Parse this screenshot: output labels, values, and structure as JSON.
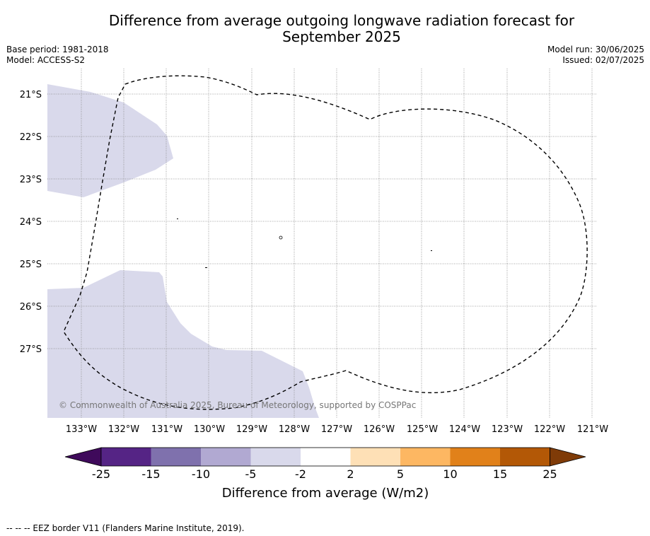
{
  "title_line1": "Difference from average outgoing longwave radiation forecast for",
  "title_line2": "September 2025",
  "meta_left": {
    "base_period": "Base period: 1981-2018",
    "model": "Model: ACCESS-S2"
  },
  "meta_right": {
    "model_run": "Model run: 30/06/2025",
    "issued": "Issued: 02/07/2025"
  },
  "copyright": "© Commonwealth of Australia 2025, Bureau of Meteorology, supported by COSPPac",
  "lat_labels": [
    "21°S",
    "22°S",
    "23°S",
    "24°S",
    "25°S",
    "26°S",
    "27°S"
  ],
  "lon_labels": [
    "133°W",
    "132°W",
    "131°W",
    "130°W",
    "129°W",
    "128°W",
    "127°W",
    "126°W",
    "125°W",
    "124°W",
    "123°W",
    "122°W",
    "121°W"
  ],
  "colorbar": {
    "ticks": [
      "-25",
      "-15",
      "-10",
      "-5",
      "-2",
      "2",
      "5",
      "10",
      "15",
      "25"
    ],
    "colors": [
      "#3f0a5b",
      "#552485",
      "#7f71ad",
      "#b1a9d2",
      "#d9d9eb",
      "#ffffff",
      "#fee0b6",
      "#fdb762",
      "#e1811a",
      "#b35806",
      "#7f3b08"
    ],
    "label": "Difference from average (W/m2)"
  },
  "map_fill_color": "#d9d9eb",
  "footnote": "-- -- -- EEZ border V11 (Flanders Marine Institute, 2019)."
}
